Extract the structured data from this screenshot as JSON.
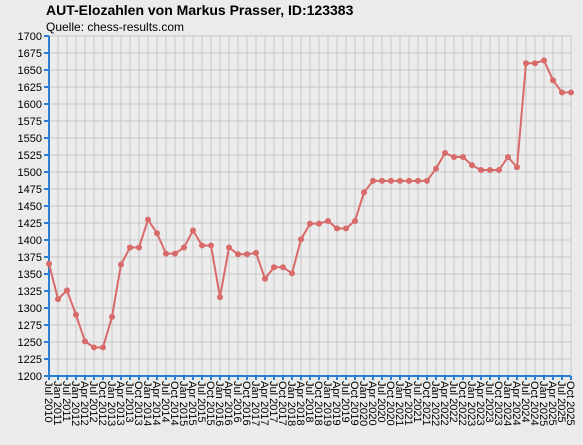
{
  "chart_data": {
    "type": "line",
    "title": "AUT-Elozahlen von Markus Prasser, ID:123383",
    "subtitle": "Quelle: chess-results.com",
    "categories": [
      "Jul 2010",
      "Jan 2011",
      "Jul 2011",
      "Jan 2012",
      "Apr 2012",
      "Jul 2012",
      "Oct 2012",
      "Jan 2013",
      "Apr 2013",
      "Jul 2013",
      "Oct 2013",
      "Jan 2014",
      "Apr 2014",
      "Jul 2014",
      "Oct 2014",
      "Jan 2015",
      "Apr 2015",
      "Jul 2015",
      "Oct 2015",
      "Jan 2016",
      "Apr 2016",
      "Jul 2016",
      "Oct 2016",
      "Jan 2017",
      "Apr 2017",
      "Jul 2017",
      "Oct 2017",
      "Jan 2018",
      "Apr 2018",
      "Jul 2018",
      "Oct 2018",
      "Jan 2019",
      "Apr 2019",
      "Jul 2019",
      "Oct 2019",
      "Jan 2020",
      "Apr 2020",
      "Jul 2020",
      "Oct 2020",
      "Jan 2021",
      "Apr 2021",
      "Jul 2021",
      "Oct 2021",
      "Jan 2022",
      "Apr 2022",
      "Jul 2022",
      "Oct 2022",
      "Jan 2023",
      "Apr 2023",
      "Jul 2023",
      "Oct 2023",
      "Jan 2024",
      "Apr 2024",
      "Jul 2024",
      "Oct 2024",
      "Jan 2025",
      "Apr 2025",
      "Jul 2025",
      "Oct 2025"
    ],
    "series": [
      {
        "name": "Elo",
        "color": "#d96a6a",
        "values": [
          1365,
          1313,
          1326,
          1290,
          1251,
          1242,
          1242,
          1287,
          1364,
          1389,
          1389,
          1430,
          1410,
          1380,
          1380,
          1389,
          1414,
          1392,
          1392,
          1316,
          1389,
          1379,
          1379,
          1381,
          1343,
          1360,
          1360,
          1351,
          1401,
          1424,
          1424,
          1428,
          1417,
          1417,
          1428,
          1470,
          1487,
          1487,
          1487,
          1487,
          1487,
          1487,
          1487,
          1505,
          1528,
          1522,
          1522,
          1510,
          1503,
          1503,
          1503,
          1522,
          1507,
          1660,
          1660,
          1664,
          1635,
          1617,
          1617
        ]
      }
    ],
    "ylim": [
      1200,
      1700
    ],
    "yticks": [
      1200,
      1225,
      1250,
      1275,
      1300,
      1325,
      1350,
      1375,
      1400,
      1425,
      1450,
      1475,
      1500,
      1525,
      1550,
      1575,
      1600,
      1625,
      1650,
      1675,
      1700
    ],
    "grid": true
  }
}
